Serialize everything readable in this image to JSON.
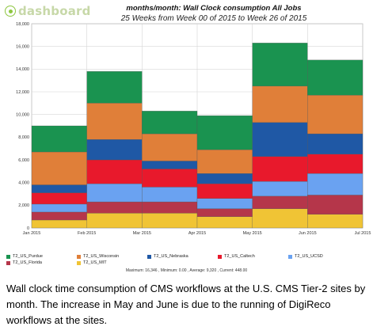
{
  "brand": {
    "logo_text": "dashboard"
  },
  "chart_data": {
    "type": "bar",
    "stacked": true,
    "title": "months/month: Wall Clock consumption All Jobs",
    "subtitle": "25 Weeks from Week 00 of 2015 to Week 26 of 2015",
    "x_ticks": [
      "Jan 2015",
      "Feb 2015",
      "Mar 2015",
      "Apr 2015",
      "May 2015",
      "Jun 2015",
      "Jul 2015"
    ],
    "categories": [
      "Jan 2015",
      "Feb 2015",
      "Mar 2015",
      "Apr 2015",
      "May 2015",
      "Jun 2015"
    ],
    "ylim": [
      0,
      18000
    ],
    "y_ticks": [
      "0",
      "2,000",
      "4,000",
      "6,000",
      "8,000",
      "10,000",
      "12,000",
      "14,000",
      "16,000",
      "18,000"
    ],
    "grid": true,
    "series": [
      {
        "name": "T2_US_MIT",
        "color": "#f0c435",
        "values": [
          700,
          1300,
          1300,
          1000,
          1700,
          1200
        ]
      },
      {
        "name": "T2_US_Florida",
        "color": "#b5364a",
        "values": [
          700,
          1000,
          1000,
          700,
          1100,
          1700
        ]
      },
      {
        "name": "T2_US_UCSD",
        "color": "#6aa2f1",
        "values": [
          700,
          1600,
          1300,
          900,
          1300,
          1900
        ]
      },
      {
        "name": "T2_US_Caltech",
        "color": "#e8192c",
        "values": [
          1000,
          2100,
          1600,
          1300,
          2200,
          1700
        ]
      },
      {
        "name": "T2_US_Nebraska",
        "color": "#1f58a5",
        "values": [
          700,
          1800,
          700,
          900,
          3000,
          1800
        ]
      },
      {
        "name": "T2_US_Wisconsin",
        "color": "#e07f39",
        "values": [
          2900,
          3200,
          2400,
          2100,
          3200,
          3400
        ]
      },
      {
        "name": "T2_US_Purdue",
        "color": "#1a9350",
        "values": [
          2300,
          2800,
          2000,
          3000,
          3800,
          3100
        ]
      }
    ],
    "legend": [
      "T2_US_Purdue",
      "T2_US_Wisconsin",
      "T2_US_Nebraska",
      "T2_US_Caltech",
      "T2_US_UCSD",
      "T2_US_Florida",
      "T2_US_MIT"
    ],
    "legend_placement": "bottom",
    "summary": "Maximum: 16,346 , Minimum: 0.00 , Average: 9,320 , Current: 448.00"
  },
  "caption": "Wall clock time consumption of CMS workflows at the U.S. CMS Tier-2 sites by month. The increase in May and June is due to the running of DigiReco workflows at the sites."
}
